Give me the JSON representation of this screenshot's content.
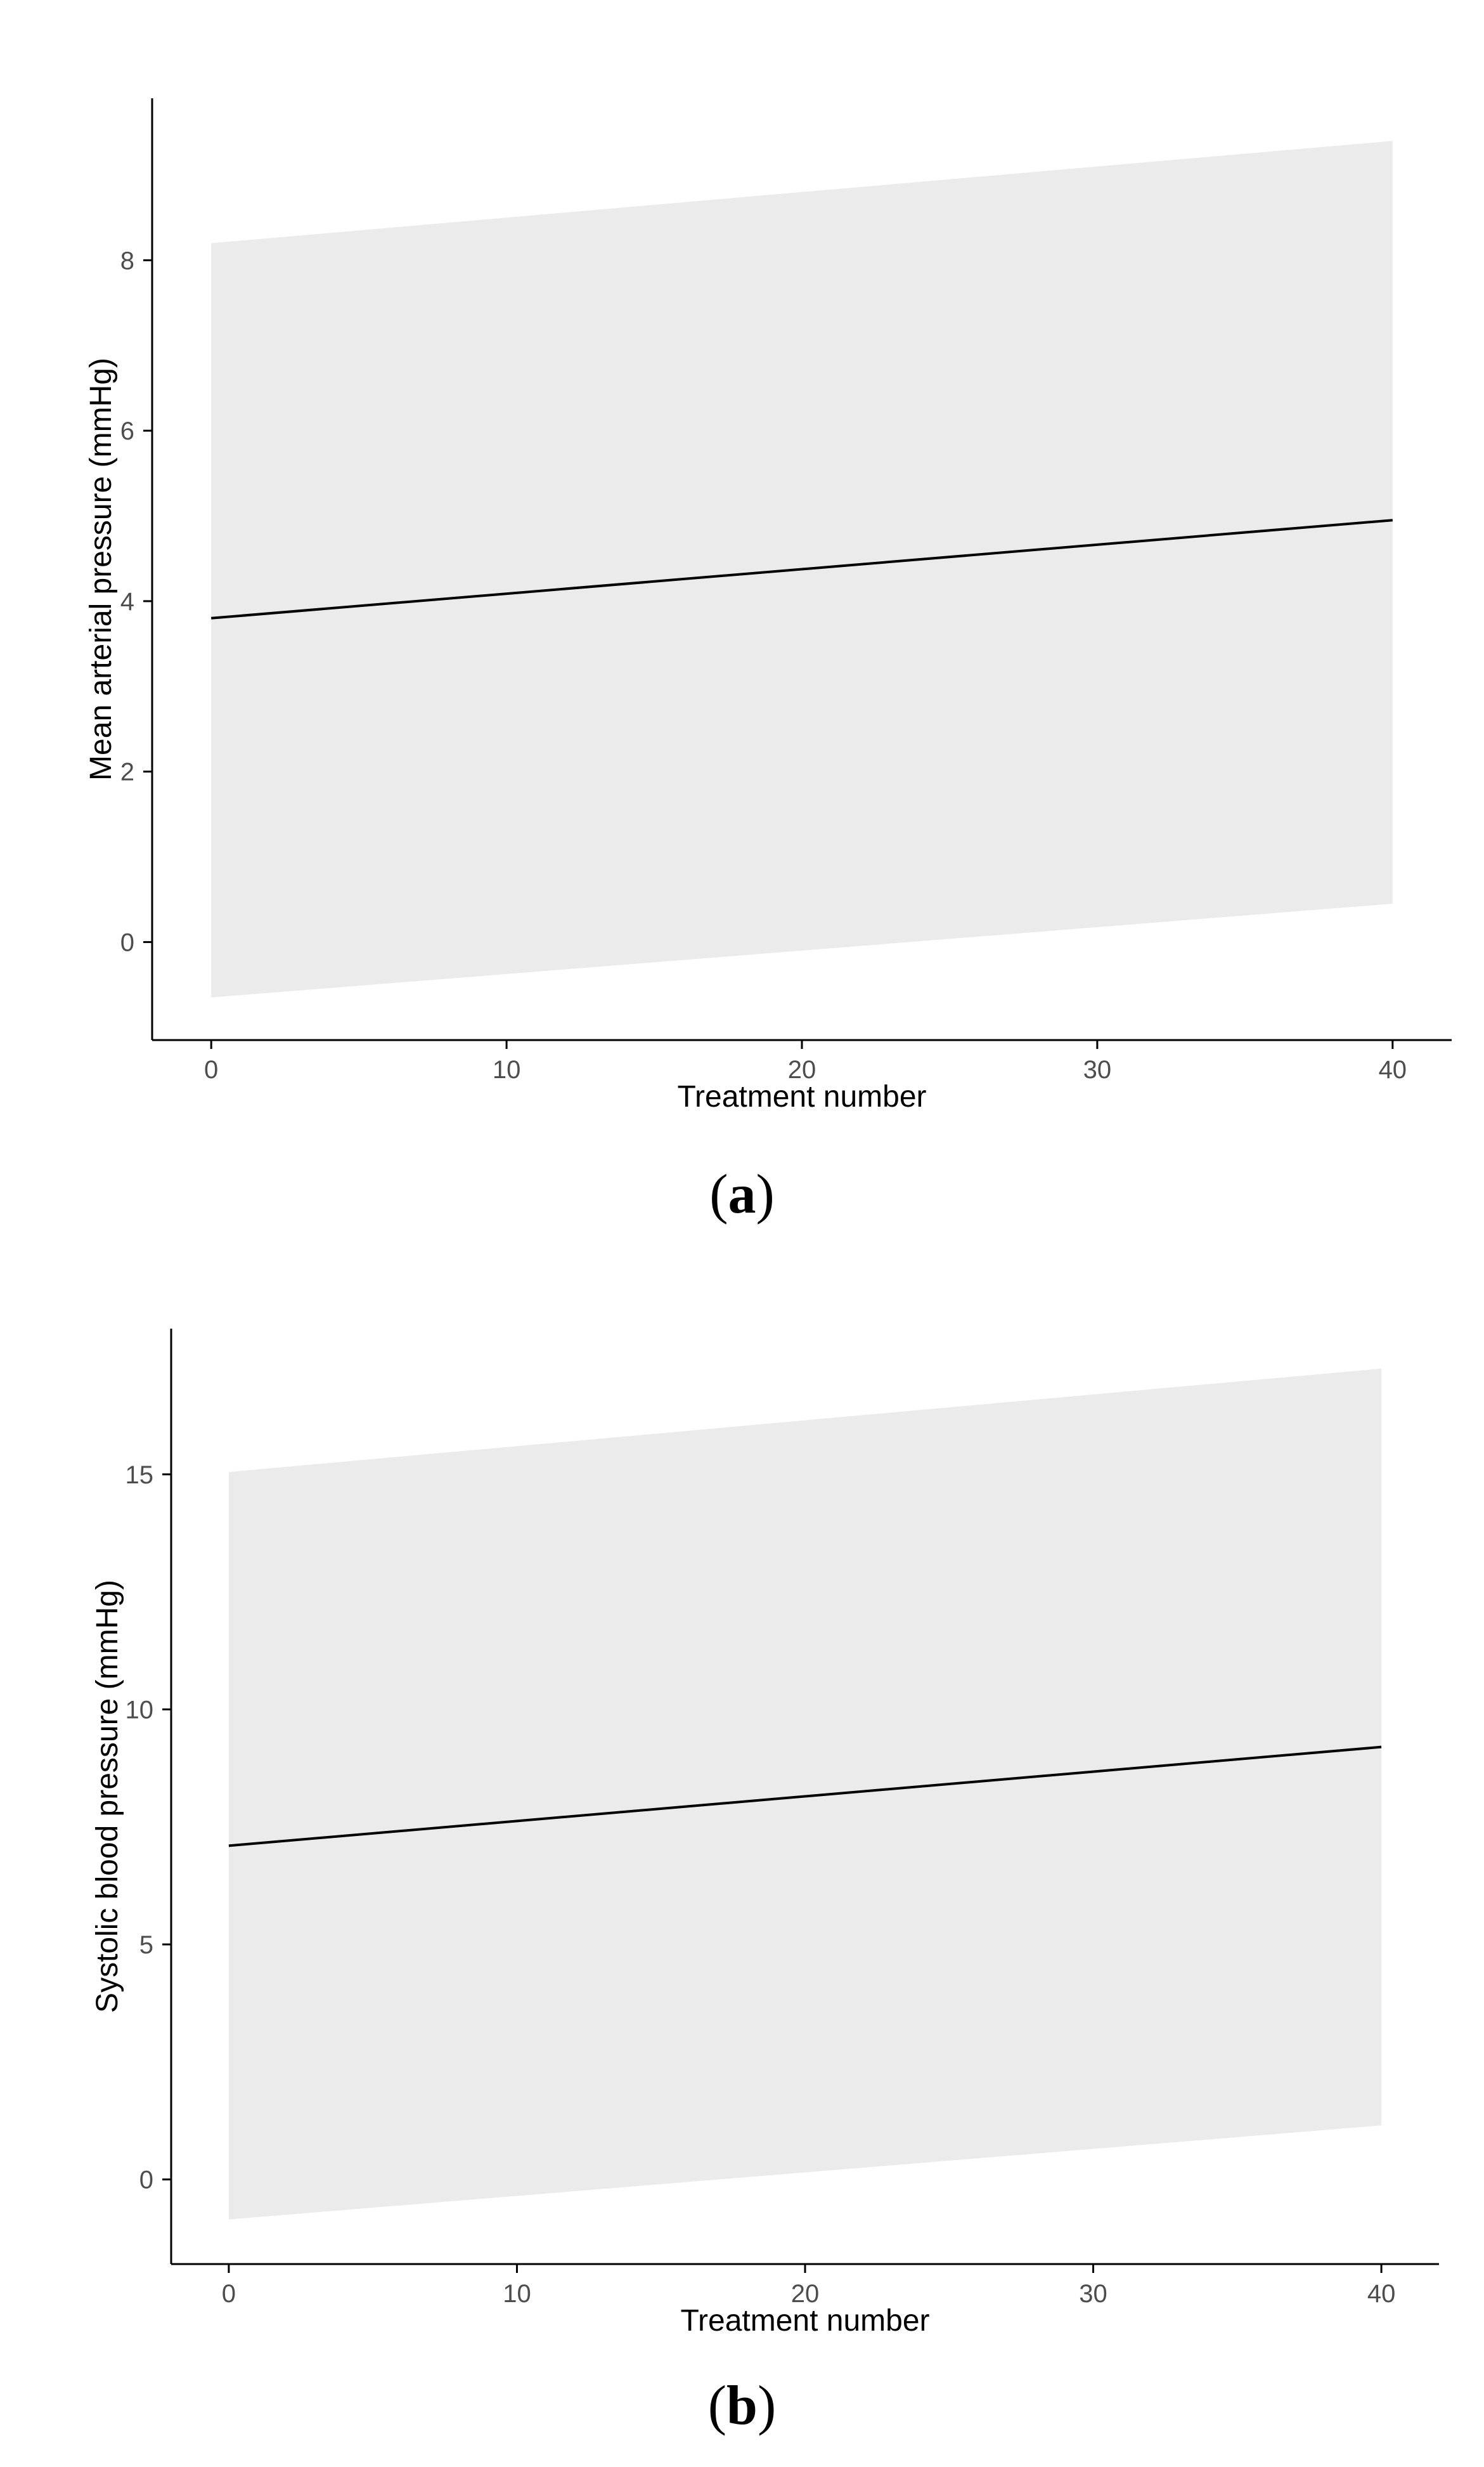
{
  "colors": {
    "ribbon": "#ebebeb",
    "line": "#000000",
    "axis": "#000000",
    "tick_text": "#4d4d4d"
  },
  "chart_data": [
    {
      "type": "line",
      "panel_label": "a",
      "xlabel": "Treatment number",
      "ylabel": "Mean arterial pressure (mmHg)",
      "xlim": [
        -2,
        42
      ],
      "ylim": [
        -1.15,
        9.9
      ],
      "x_ticks": [
        0,
        10,
        20,
        30,
        40
      ],
      "y_ticks": [
        0,
        2,
        4,
        6,
        8
      ],
      "grid": false,
      "legend": "none",
      "series": [
        {
          "x": [
            0,
            40
          ],
          "y": [
            3.8,
            4.95
          ],
          "ci_lower": [
            -0.65,
            0.45
          ],
          "ci_upper": [
            8.2,
            9.4
          ]
        }
      ]
    },
    {
      "type": "line",
      "panel_label": "b",
      "xlabel": "Treatment number",
      "ylabel": "Systolic blood pressure (mmHg)",
      "xlim": [
        -2,
        42
      ],
      "ylim": [
        -1.8,
        18.1
      ],
      "x_ticks": [
        0,
        10,
        20,
        30,
        40
      ],
      "y_ticks": [
        0,
        5,
        10,
        15
      ],
      "grid": false,
      "legend": "none",
      "series": [
        {
          "x": [
            0,
            40
          ],
          "y": [
            7.1,
            9.2
          ],
          "ci_lower": [
            -0.85,
            1.15
          ],
          "ci_upper": [
            15.05,
            17.25
          ]
        }
      ]
    }
  ]
}
